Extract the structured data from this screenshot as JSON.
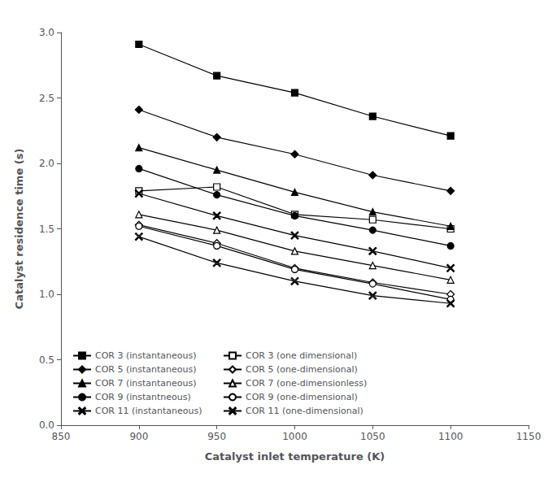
{
  "chart_data": {
    "type": "line",
    "x_label": "Catalyst inlet temperature (K)",
    "y_label": "Catalyst residence time (s)",
    "x": [
      900,
      950,
      1000,
      1050,
      1100
    ],
    "series": [
      {
        "name": "COR 3 (instantaneous)",
        "color": "#000000",
        "marker": "square",
        "line_style": "solid",
        "values": [
          2.91,
          2.67,
          2.54,
          2.36,
          2.21
        ]
      },
      {
        "name": "COR 3 (one dimensional)",
        "color": "#000000",
        "marker": "square-open",
        "line_style": "solid",
        "values": [
          1.79,
          1.82,
          1.61,
          1.57,
          1.5
        ]
      },
      {
        "name": "COR 5 (instantaneous)",
        "color": "#000000",
        "marker": "diamond",
        "line_style": "solid",
        "values": [
          2.41,
          2.2,
          2.07,
          1.91,
          1.79
        ]
      },
      {
        "name": "COR 5 (one-dimensional)",
        "color": "#000000",
        "marker": "diamond-open",
        "line_style": "solid",
        "values": [
          1.53,
          1.39,
          1.2,
          1.09,
          1.0
        ]
      },
      {
        "name": "COR 7 (instantaneous)",
        "color": "#000000",
        "marker": "triangle",
        "line_style": "solid",
        "values": [
          2.12,
          1.95,
          1.78,
          1.63,
          1.52
        ]
      },
      {
        "name": "COR 7 (one-dimensionless)",
        "color": "#000000",
        "marker": "triangle-open",
        "line_style": "solid",
        "values": [
          1.61,
          1.49,
          1.33,
          1.22,
          1.11
        ]
      },
      {
        "name": "COR 9 (instantneous)",
        "color": "#000000",
        "marker": "circle",
        "line_style": "solid",
        "values": [
          1.96,
          1.76,
          1.6,
          1.49,
          1.37
        ]
      },
      {
        "name": "COR 9 (one-dimensional)",
        "color": "#000000",
        "marker": "circle-open",
        "line_style": "solid",
        "values": [
          1.52,
          1.37,
          1.19,
          1.08,
          0.96
        ]
      },
      {
        "name": "COR 11 (instantaneous)",
        "color": "#000000",
        "marker": "x",
        "line_style": "solid",
        "values": [
          1.77,
          1.6,
          1.45,
          1.33,
          1.2
        ]
      },
      {
        "name": "COR 11 (one-dimensional)",
        "color": "#000000",
        "marker": "x-open",
        "line_style": "solid",
        "values": [
          1.44,
          1.24,
          1.1,
          0.99,
          0.93
        ]
      }
    ],
    "xlim": [
      850,
      1150
    ],
    "ylim": [
      0,
      3.0
    ],
    "xticks": [
      850,
      900,
      950,
      1000,
      1050,
      1100,
      1150
    ],
    "yticks": [
      {
        "value": 0,
        "label": "0.0"
      },
      0.5,
      {
        "value": 1.0,
        "label": "1.0"
      },
      {
        "value": 1.5,
        "label": "1.5"
      },
      {
        "value": 2.0,
        "label": "2.0"
      },
      2.5,
      {
        "value": 3.0,
        "label": "3.0"
      }
    ],
    "legend": "lower left",
    "grid": false
  }
}
